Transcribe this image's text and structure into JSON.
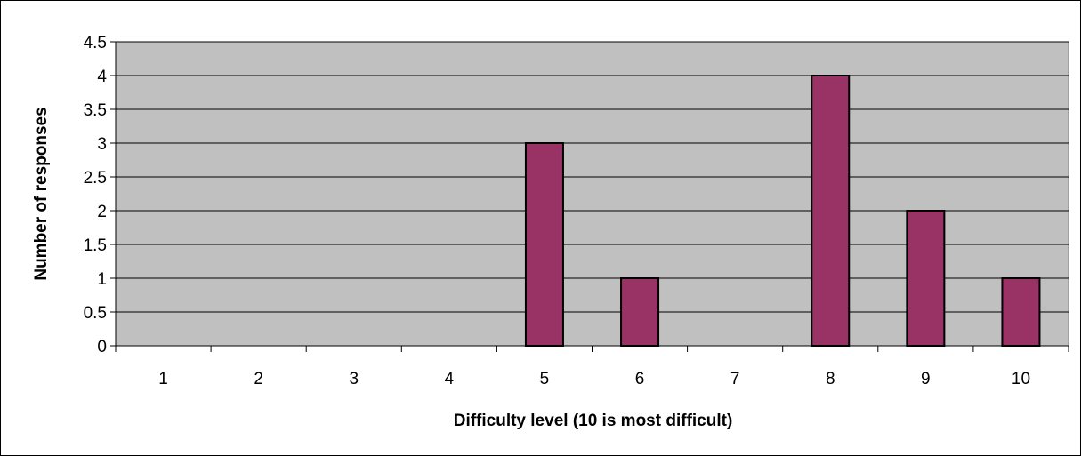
{
  "chart_data": {
    "type": "bar",
    "title": "",
    "xlabel": "Difficulty level (10 is most difficult)",
    "ylabel": "Number of responses",
    "categories": [
      "1",
      "2",
      "3",
      "4",
      "5",
      "6",
      "7",
      "8",
      "9",
      "10"
    ],
    "values": [
      0,
      0,
      0,
      0,
      3,
      1,
      0,
      4,
      2,
      1
    ],
    "ylim": [
      0,
      4.5
    ],
    "yticks": [
      "0",
      "0.5",
      "1",
      "1.5",
      "2",
      "2.5",
      "3",
      "3.5",
      "4",
      "4.5"
    ],
    "grid": true,
    "legend": "none",
    "colors": {
      "bar": "#993366",
      "plot_background": "#c0c0c0",
      "gridline": "#000000"
    }
  }
}
